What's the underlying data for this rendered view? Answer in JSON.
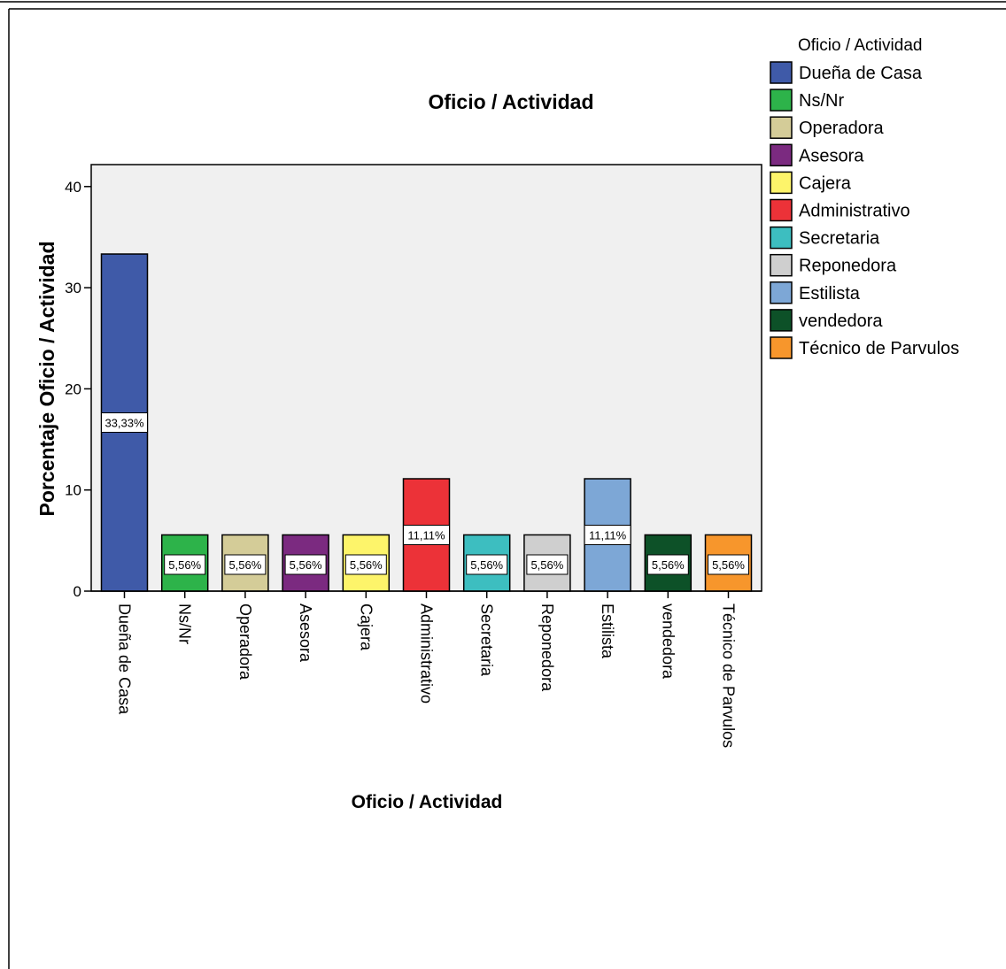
{
  "chart_data": {
    "type": "bar",
    "title": "Oficio / Actividad",
    "xlabel": "Oficio / Actividad",
    "ylabel": "Porcentaje Oficio / Actividad",
    "ylim": [
      0,
      42
    ],
    "yticks": [
      0,
      10,
      20,
      30,
      40
    ],
    "grid": false,
    "legend_position": "top-right",
    "legend_title": "Oficio / Actividad",
    "categories": [
      "Dueña de Casa",
      "Ns/Nr",
      "Operadora",
      "Asesora",
      "Cajera",
      "Administrativo",
      "Secretaria",
      "Reponedora",
      "Estilista",
      "vendedora",
      "Técnico de Parvulos"
    ],
    "values": [
      33.33,
      5.56,
      5.56,
      5.56,
      5.56,
      11.11,
      5.56,
      5.56,
      11.11,
      5.56,
      5.56
    ],
    "data_labels": [
      "33,33%",
      "5,56%",
      "5,56%",
      "5,56%",
      "5,56%",
      "11,11%",
      "5,56%",
      "5,56%",
      "11,11%",
      "5,56%",
      "5,56%"
    ],
    "colors": [
      "#3f5aa8",
      "#2db34a",
      "#d4cc98",
      "#7b2a80",
      "#fdf46a",
      "#ec3238",
      "#3dbec0",
      "#cfcfcf",
      "#7da7d6",
      "#0d5128",
      "#f7962c"
    ],
    "plot_background": "#f0f0f0"
  }
}
